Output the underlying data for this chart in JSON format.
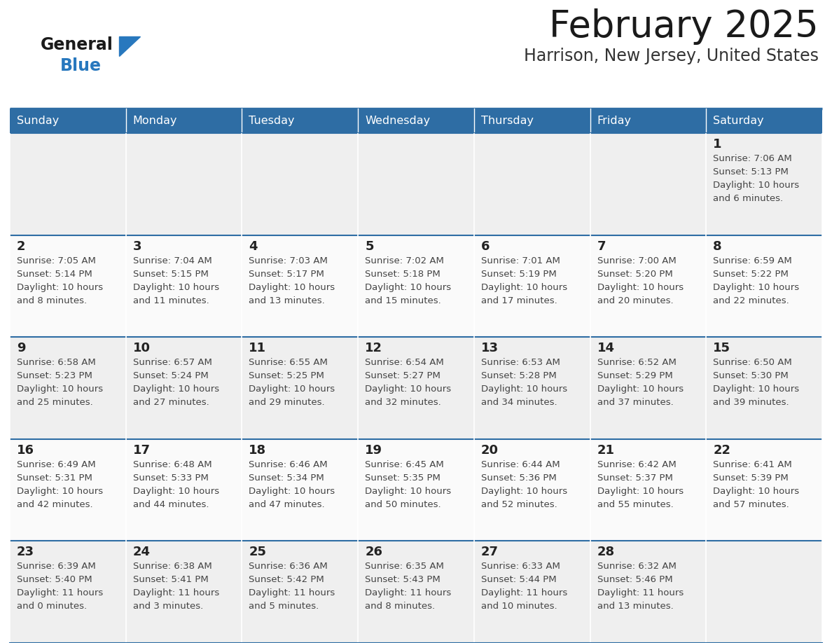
{
  "title": "February 2025",
  "subtitle": "Harrison, New Jersey, United States",
  "days_of_week": [
    "Sunday",
    "Monday",
    "Tuesday",
    "Wednesday",
    "Thursday",
    "Friday",
    "Saturday"
  ],
  "header_bg": "#2E6DA4",
  "header_text": "#FFFFFF",
  "cell_bg_odd": "#EFEFEF",
  "cell_bg_even": "#FAFAFA",
  "border_color": "#2E6DA4",
  "day_text_color": "#222222",
  "info_text_color": "#444444",
  "title_color": "#1a1a1a",
  "subtitle_color": "#333333",
  "logo_black": "#1a1a1a",
  "logo_blue": "#2878BE",
  "triangle_color": "#2878BE",
  "weeks": [
    [
      {
        "day": null,
        "sunrise": null,
        "sunset": null,
        "daylight": null
      },
      {
        "day": null,
        "sunrise": null,
        "sunset": null,
        "daylight": null
      },
      {
        "day": null,
        "sunrise": null,
        "sunset": null,
        "daylight": null
      },
      {
        "day": null,
        "sunrise": null,
        "sunset": null,
        "daylight": null
      },
      {
        "day": null,
        "sunrise": null,
        "sunset": null,
        "daylight": null
      },
      {
        "day": null,
        "sunrise": null,
        "sunset": null,
        "daylight": null
      },
      {
        "day": 1,
        "sunrise": "7:06 AM",
        "sunset": "5:13 PM",
        "daylight": "10 hours\nand 6 minutes."
      }
    ],
    [
      {
        "day": 2,
        "sunrise": "7:05 AM",
        "sunset": "5:14 PM",
        "daylight": "10 hours\nand 8 minutes."
      },
      {
        "day": 3,
        "sunrise": "7:04 AM",
        "sunset": "5:15 PM",
        "daylight": "10 hours\nand 11 minutes."
      },
      {
        "day": 4,
        "sunrise": "7:03 AM",
        "sunset": "5:17 PM",
        "daylight": "10 hours\nand 13 minutes."
      },
      {
        "day": 5,
        "sunrise": "7:02 AM",
        "sunset": "5:18 PM",
        "daylight": "10 hours\nand 15 minutes."
      },
      {
        "day": 6,
        "sunrise": "7:01 AM",
        "sunset": "5:19 PM",
        "daylight": "10 hours\nand 17 minutes."
      },
      {
        "day": 7,
        "sunrise": "7:00 AM",
        "sunset": "5:20 PM",
        "daylight": "10 hours\nand 20 minutes."
      },
      {
        "day": 8,
        "sunrise": "6:59 AM",
        "sunset": "5:22 PM",
        "daylight": "10 hours\nand 22 minutes."
      }
    ],
    [
      {
        "day": 9,
        "sunrise": "6:58 AM",
        "sunset": "5:23 PM",
        "daylight": "10 hours\nand 25 minutes."
      },
      {
        "day": 10,
        "sunrise": "6:57 AM",
        "sunset": "5:24 PM",
        "daylight": "10 hours\nand 27 minutes."
      },
      {
        "day": 11,
        "sunrise": "6:55 AM",
        "sunset": "5:25 PM",
        "daylight": "10 hours\nand 29 minutes."
      },
      {
        "day": 12,
        "sunrise": "6:54 AM",
        "sunset": "5:27 PM",
        "daylight": "10 hours\nand 32 minutes."
      },
      {
        "day": 13,
        "sunrise": "6:53 AM",
        "sunset": "5:28 PM",
        "daylight": "10 hours\nand 34 minutes."
      },
      {
        "day": 14,
        "sunrise": "6:52 AM",
        "sunset": "5:29 PM",
        "daylight": "10 hours\nand 37 minutes."
      },
      {
        "day": 15,
        "sunrise": "6:50 AM",
        "sunset": "5:30 PM",
        "daylight": "10 hours\nand 39 minutes."
      }
    ],
    [
      {
        "day": 16,
        "sunrise": "6:49 AM",
        "sunset": "5:31 PM",
        "daylight": "10 hours\nand 42 minutes."
      },
      {
        "day": 17,
        "sunrise": "6:48 AM",
        "sunset": "5:33 PM",
        "daylight": "10 hours\nand 44 minutes."
      },
      {
        "day": 18,
        "sunrise": "6:46 AM",
        "sunset": "5:34 PM",
        "daylight": "10 hours\nand 47 minutes."
      },
      {
        "day": 19,
        "sunrise": "6:45 AM",
        "sunset": "5:35 PM",
        "daylight": "10 hours\nand 50 minutes."
      },
      {
        "day": 20,
        "sunrise": "6:44 AM",
        "sunset": "5:36 PM",
        "daylight": "10 hours\nand 52 minutes."
      },
      {
        "day": 21,
        "sunrise": "6:42 AM",
        "sunset": "5:37 PM",
        "daylight": "10 hours\nand 55 minutes."
      },
      {
        "day": 22,
        "sunrise": "6:41 AM",
        "sunset": "5:39 PM",
        "daylight": "10 hours\nand 57 minutes."
      }
    ],
    [
      {
        "day": 23,
        "sunrise": "6:39 AM",
        "sunset": "5:40 PM",
        "daylight": "11 hours\nand 0 minutes."
      },
      {
        "day": 24,
        "sunrise": "6:38 AM",
        "sunset": "5:41 PM",
        "daylight": "11 hours\nand 3 minutes."
      },
      {
        "day": 25,
        "sunrise": "6:36 AM",
        "sunset": "5:42 PM",
        "daylight": "11 hours\nand 5 minutes."
      },
      {
        "day": 26,
        "sunrise": "6:35 AM",
        "sunset": "5:43 PM",
        "daylight": "11 hours\nand 8 minutes."
      },
      {
        "day": 27,
        "sunrise": "6:33 AM",
        "sunset": "5:44 PM",
        "daylight": "11 hours\nand 10 minutes."
      },
      {
        "day": 28,
        "sunrise": "6:32 AM",
        "sunset": "5:46 PM",
        "daylight": "11 hours\nand 13 minutes."
      },
      {
        "day": null,
        "sunrise": null,
        "sunset": null,
        "daylight": null
      }
    ]
  ]
}
